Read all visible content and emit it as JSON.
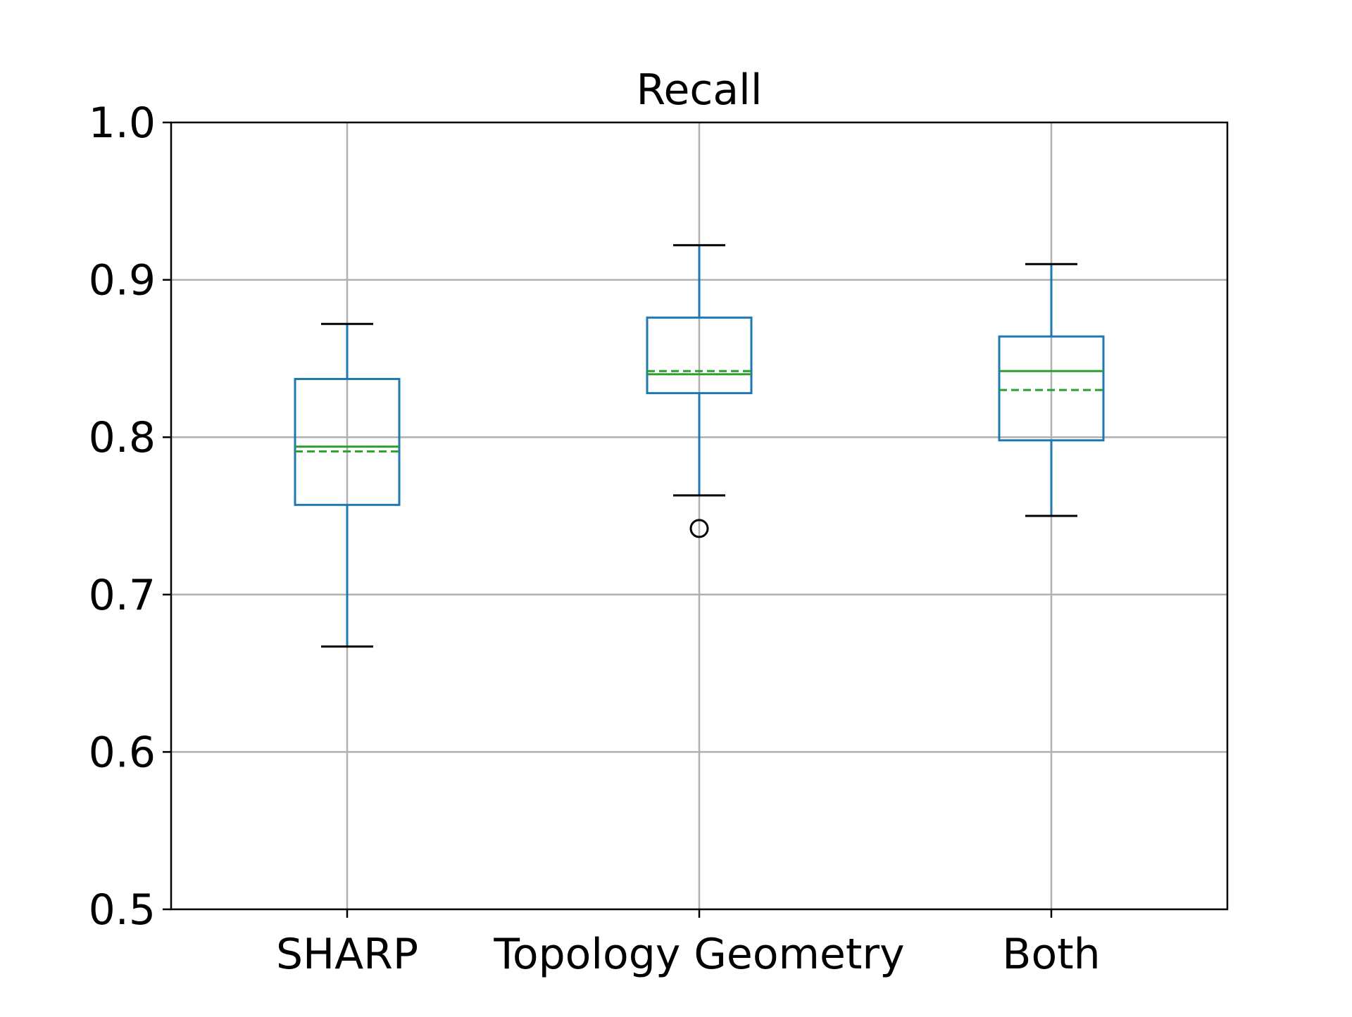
{
  "chart_data": {
    "type": "box",
    "title": "Recall",
    "xlabel": "",
    "ylabel": "",
    "ylim": [
      0.5,
      1.0
    ],
    "yticks": [
      "0.5",
      "0.6",
      "0.7",
      "0.8",
      "0.9",
      "1.0"
    ],
    "grid": true,
    "categories": [
      "SHARP",
      "Topology Geometry",
      "Both"
    ],
    "boxes": [
      {
        "name": "SHARP",
        "whisker_low": 0.667,
        "q1": 0.757,
        "median": 0.794,
        "mean": 0.791,
        "q3": 0.837,
        "whisker_high": 0.872,
        "outliers": []
      },
      {
        "name": "Topology Geometry",
        "whisker_low": 0.763,
        "q1": 0.828,
        "median": 0.84,
        "mean": 0.842,
        "q3": 0.876,
        "whisker_high": 0.922,
        "outliers": [
          0.742
        ]
      },
      {
        "name": "Both",
        "whisker_low": 0.75,
        "q1": 0.798,
        "median": 0.842,
        "mean": 0.83,
        "q3": 0.864,
        "whisker_high": 0.91,
        "outliers": []
      }
    ],
    "colors": {
      "box": "#1f77b4",
      "median": "#2ca02c",
      "mean": "#2ca02c",
      "cap": "#000000",
      "grid": "#b0b0b0",
      "axis": "#000000"
    }
  }
}
